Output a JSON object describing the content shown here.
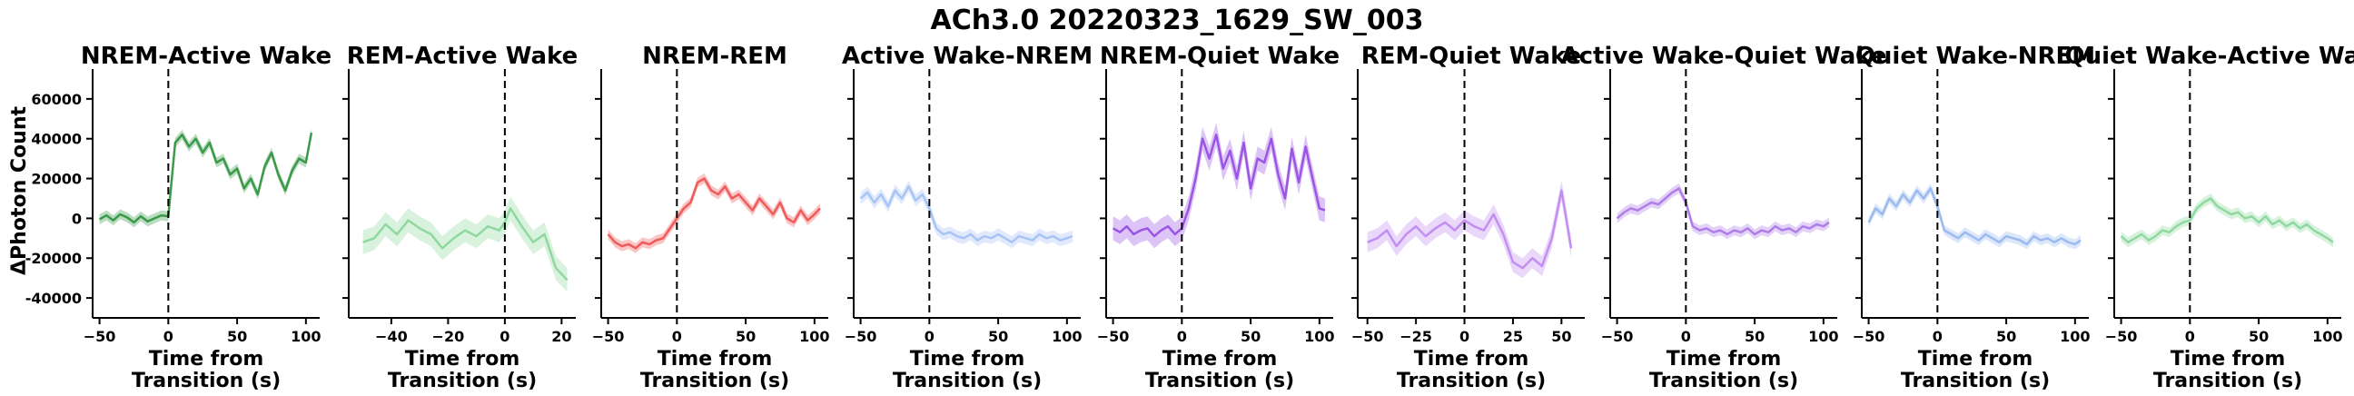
{
  "suptitle": "ACh3.0 20220323_1629_SW_003",
  "ylabel": "ΔPhoton Count",
  "xlabel_line1": "Time from",
  "xlabel_line2": "Transition (s)",
  "chart_data": [
    {
      "type": "line",
      "title": "NREM-Active Wake",
      "color": "#3a9a4a",
      "xlim": [
        -55,
        110
      ],
      "ylim": [
        -50000,
        75000
      ],
      "xticks": [
        -50,
        0,
        50,
        100
      ],
      "x": [
        -50,
        -45,
        -40,
        -35,
        -30,
        -25,
        -20,
        -15,
        -10,
        -5,
        0,
        5,
        10,
        15,
        20,
        25,
        30,
        35,
        40,
        45,
        50,
        55,
        60,
        65,
        70,
        75,
        80,
        85,
        90,
        95,
        100,
        104
      ],
      "y": [
        -500,
        1500,
        -1000,
        2000,
        500,
        -2000,
        1000,
        -1500,
        0,
        1500,
        1000,
        38000,
        42000,
        36000,
        40000,
        33000,
        38000,
        28000,
        30000,
        22000,
        25000,
        15000,
        20000,
        12000,
        26000,
        33000,
        22000,
        14000,
        24000,
        30000,
        28000,
        43000
      ],
      "band": 2500
    },
    {
      "type": "line",
      "title": "REM-Active Wake",
      "color": "#8fd9a0",
      "xlim": [
        -55,
        25
      ],
      "ylim": [
        -50000,
        75000
      ],
      "xticks": [
        -40,
        -20,
        0,
        20
      ],
      "x": [
        -50,
        -46,
        -42,
        -38,
        -34,
        -30,
        -26,
        -22,
        -18,
        -14,
        -10,
        -6,
        -2,
        0,
        2,
        6,
        10,
        14,
        18,
        22
      ],
      "y": [
        -12000,
        -10000,
        -3000,
        -8000,
        -1000,
        -5000,
        -8000,
        -15000,
        -10000,
        -6000,
        -9000,
        -4000,
        -6000,
        -2000,
        5000,
        -4000,
        -12000,
        -8000,
        -25000,
        -31000
      ],
      "band": 6000
    },
    {
      "type": "line",
      "title": "NREM-REM",
      "color": "#f05a5a",
      "xlim": [
        -55,
        110
      ],
      "ylim": [
        -50000,
        75000
      ],
      "xticks": [
        -50,
        0,
        50,
        100
      ],
      "x": [
        -50,
        -45,
        -40,
        -35,
        -30,
        -25,
        -20,
        -15,
        -10,
        -5,
        0,
        5,
        10,
        15,
        20,
        25,
        30,
        35,
        40,
        45,
        50,
        55,
        60,
        65,
        70,
        75,
        80,
        85,
        90,
        95,
        100,
        104
      ],
      "y": [
        -8000,
        -12000,
        -14000,
        -13000,
        -15000,
        -12000,
        -13000,
        -11000,
        -10000,
        -5000,
        0,
        5000,
        8000,
        18000,
        20000,
        14000,
        12000,
        16000,
        10000,
        12000,
        8000,
        4000,
        10000,
        6000,
        2000,
        8000,
        0,
        -2000,
        4000,
        -1000,
        2000,
        5000
      ],
      "band": 2500
    },
    {
      "type": "line",
      "title": "Active Wake-NREM",
      "color": "#a8c4f5",
      "xlim": [
        -55,
        110
      ],
      "ylim": [
        -50000,
        75000
      ],
      "xticks": [
        -50,
        0,
        50,
        100
      ],
      "x": [
        -50,
        -45,
        -40,
        -35,
        -30,
        -25,
        -20,
        -15,
        -10,
        -5,
        0,
        5,
        10,
        15,
        20,
        25,
        30,
        35,
        40,
        45,
        50,
        55,
        60,
        65,
        70,
        75,
        80,
        85,
        90,
        95,
        100,
        104
      ],
      "y": [
        10000,
        13000,
        8000,
        12000,
        6000,
        14000,
        10000,
        16000,
        9000,
        12000,
        5000,
        -5000,
        -8000,
        -7000,
        -9000,
        -10000,
        -8000,
        -11000,
        -9000,
        -10000,
        -8000,
        -10000,
        -12000,
        -9000,
        -10000,
        -11000,
        -8000,
        -10000,
        -9000,
        -11000,
        -10000,
        -9000
      ],
      "band": 3000
    },
    {
      "type": "line",
      "title": "NREM-Quiet Wake",
      "color": "#9b55e6",
      "xlim": [
        -55,
        110
      ],
      "ylim": [
        -50000,
        75000
      ],
      "xticks": [
        -50,
        0,
        50,
        100
      ],
      "x": [
        -50,
        -45,
        -40,
        -35,
        -30,
        -25,
        -20,
        -15,
        -10,
        -5,
        0,
        5,
        10,
        15,
        20,
        25,
        30,
        35,
        40,
        45,
        50,
        55,
        60,
        65,
        70,
        75,
        80,
        85,
        90,
        95,
        100,
        104
      ],
      "y": [
        -5000,
        -7000,
        -4000,
        -8000,
        -6000,
        -5000,
        -9000,
        -6000,
        -4000,
        -8000,
        -5000,
        5000,
        20000,
        40000,
        30000,
        42000,
        25000,
        34000,
        20000,
        38000,
        15000,
        30000,
        28000,
        40000,
        22000,
        10000,
        35000,
        18000,
        36000,
        20000,
        5000,
        4000
      ],
      "band": 6000
    },
    {
      "type": "line",
      "title": "REM-Quiet Wake",
      "color": "#c28ef2",
      "xlim": [
        -55,
        62
      ],
      "ylim": [
        -50000,
        75000
      ],
      "xticks": [
        -50,
        -25,
        0,
        25,
        50
      ],
      "x": [
        -50,
        -45,
        -40,
        -35,
        -30,
        -25,
        -20,
        -15,
        -10,
        -5,
        0,
        5,
        10,
        15,
        20,
        25,
        30,
        35,
        40,
        45,
        50,
        55
      ],
      "y": [
        -12000,
        -10000,
        -6000,
        -14000,
        -8000,
        -4000,
        -9000,
        -5000,
        -2000,
        -6000,
        -1000,
        -4000,
        -6000,
        2000,
        -8000,
        -22000,
        -25000,
        -20000,
        -24000,
        -10000,
        14000,
        -15000
      ],
      "band": 5000
    },
    {
      "type": "line",
      "title": "Active Wake-Quiet Wake",
      "color": "#b07de8",
      "xlim": [
        -55,
        110
      ],
      "ylim": [
        -50000,
        75000
      ],
      "xticks": [
        -50,
        0,
        50,
        100
      ],
      "x": [
        -50,
        -45,
        -40,
        -35,
        -30,
        -25,
        -20,
        -15,
        -10,
        -5,
        0,
        5,
        10,
        15,
        20,
        25,
        30,
        35,
        40,
        45,
        50,
        55,
        60,
        65,
        70,
        75,
        80,
        85,
        90,
        95,
        100,
        104
      ],
      "y": [
        0,
        3000,
        5000,
        4000,
        6000,
        8000,
        7000,
        10000,
        13000,
        15000,
        8000,
        -4000,
        -6000,
        -5000,
        -7000,
        -6000,
        -8000,
        -6000,
        -7000,
        -5000,
        -8000,
        -6000,
        -7000,
        -4000,
        -6000,
        -5000,
        -7000,
        -4000,
        -5000,
        -3000,
        -4000,
        -2000
      ],
      "band": 2500
    },
    {
      "type": "line",
      "title": "Quiet Wake-NREM",
      "color": "#9abaf0",
      "xlim": [
        -55,
        110
      ],
      "ylim": [
        -50000,
        75000
      ],
      "xticks": [
        -50,
        0,
        50,
        100
      ],
      "x": [
        -50,
        -45,
        -40,
        -35,
        -30,
        -25,
        -20,
        -15,
        -10,
        -5,
        0,
        5,
        10,
        15,
        20,
        25,
        30,
        35,
        40,
        45,
        50,
        55,
        60,
        65,
        70,
        75,
        80,
        85,
        90,
        95,
        100,
        104
      ],
      "y": [
        -2000,
        5000,
        2000,
        10000,
        6000,
        12000,
        8000,
        14000,
        10000,
        15000,
        6000,
        -6000,
        -8000,
        -10000,
        -7000,
        -9000,
        -11000,
        -8000,
        -10000,
        -12000,
        -9000,
        -10000,
        -11000,
        -13000,
        -9000,
        -11000,
        -10000,
        -12000,
        -10000,
        -12000,
        -13000,
        -11000
      ],
      "band": 2500
    },
    {
      "type": "line",
      "title": "Quiet Wake-Active Wake",
      "color": "#8fd9a0",
      "xlim": [
        -55,
        110
      ],
      "ylim": [
        -50000,
        75000
      ],
      "xticks": [
        -50,
        0,
        50,
        100
      ],
      "x": [
        -50,
        -45,
        -40,
        -35,
        -30,
        -25,
        -20,
        -15,
        -10,
        -5,
        0,
        5,
        10,
        15,
        20,
        25,
        30,
        35,
        40,
        45,
        50,
        55,
        60,
        65,
        70,
        75,
        80,
        85,
        90,
        95,
        100,
        104
      ],
      "y": [
        -9000,
        -12000,
        -10000,
        -8000,
        -11000,
        -9000,
        -6000,
        -7000,
        -4000,
        -2000,
        -1000,
        5000,
        8000,
        10000,
        6000,
        4000,
        2000,
        3000,
        0,
        1000,
        -2000,
        1000,
        -3000,
        -1000,
        -4000,
        -2000,
        -5000,
        -3000,
        -6000,
        -8000,
        -10000,
        -12000
      ],
      "band": 2500
    }
  ],
  "yticks": [
    -40000,
    -20000,
    0,
    20000,
    40000,
    60000
  ]
}
